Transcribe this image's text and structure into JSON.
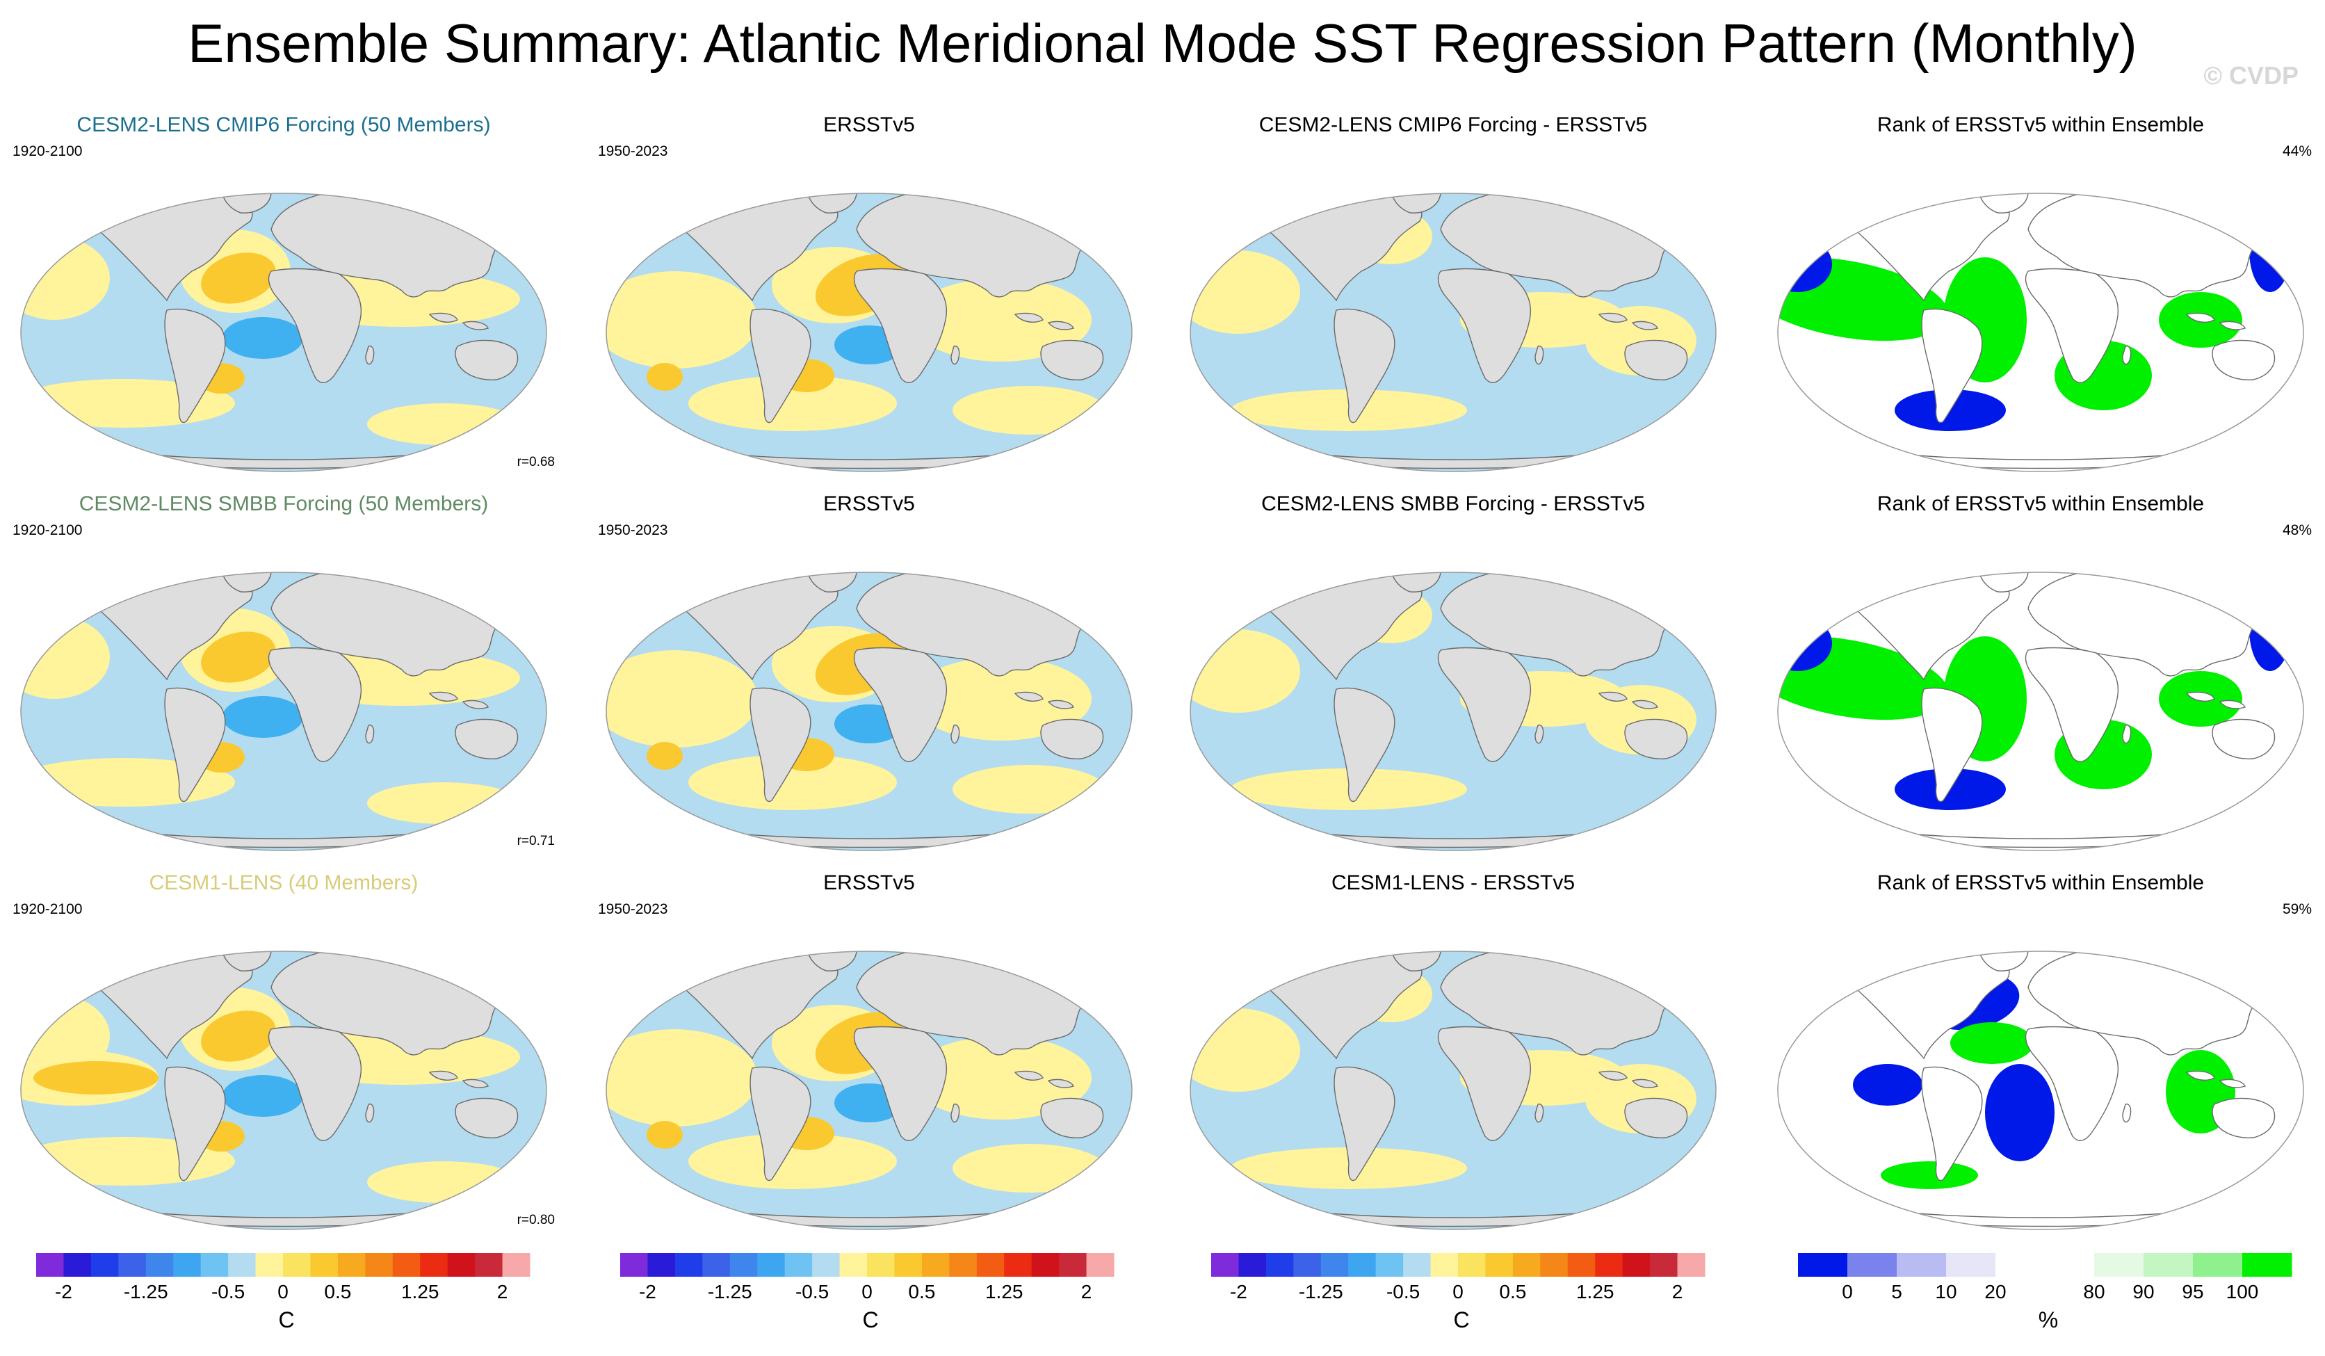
{
  "title": "Ensemble Summary: Atlantic Meridional Mode SST Regression Pattern (Monthly)",
  "watermark": "© CVDP",
  "colors": {
    "land": "#dedede",
    "coast": "#6a6a6a",
    "warm1": "#fff39c",
    "warm2": "#f9c92f",
    "cool1": "#b3dcf0",
    "cool2": "#3fb0f0",
    "rank_low": "#0018e8",
    "rank_mid": "#ffffff",
    "rank_high": "#00f000"
  },
  "rows": [
    {
      "ensemble": {
        "title": "CESM2-LENS CMIP6 Forcing (50 Members)",
        "title_color": "#1a6f8f",
        "period": "1920-2100",
        "corr": "r=0.68"
      },
      "obs": {
        "title": "ERSSTv5",
        "period": "1950-2023"
      },
      "diff": {
        "title": "CESM2-LENS CMIP6 Forcing - ERSSTv5"
      },
      "rank": {
        "title": "Rank of ERSSTv5 within Ensemble",
        "pct": "44%"
      }
    },
    {
      "ensemble": {
        "title": "CESM2-LENS SMBB Forcing (50 Members)",
        "title_color": "#5f8a63",
        "period": "1920-2100",
        "corr": "r=0.71"
      },
      "obs": {
        "title": "ERSSTv5",
        "period": "1950-2023"
      },
      "diff": {
        "title": "CESM2-LENS SMBB Forcing - ERSSTv5"
      },
      "rank": {
        "title": "Rank of ERSSTv5 within Ensemble",
        "pct": "48%"
      }
    },
    {
      "ensemble": {
        "title": "CESM1-LENS (40 Members)",
        "title_color": "#d7cc79",
        "period": "1920-2100",
        "corr": "r=0.80"
      },
      "obs": {
        "title": "ERSSTv5",
        "period": "1950-2023"
      },
      "diff": {
        "title": "CESM1-LENS - ERSSTv5"
      },
      "rank": {
        "title": "Rank of ERSSTv5 within Ensemble",
        "pct": "59%"
      }
    }
  ],
  "chart_data": [
    {
      "type": "heatmap",
      "variable": "SST regression",
      "projection": "robinson",
      "colorbar": {
        "unit": "C",
        "tick_labels": [
          "-2",
          "-1.25",
          "-0.5",
          "0",
          "0.5",
          "1.25",
          "2"
        ],
        "tick_values": [
          -2,
          -1.25,
          -0.5,
          0,
          0.5,
          1.25,
          2
        ],
        "range": [
          -2.25,
          2.25
        ],
        "colors": [
          "#7f2bdc",
          "#2a1bd8",
          "#1f3de8",
          "#3b62e8",
          "#3e86ec",
          "#3ea6f0",
          "#6fc3f3",
          "#b3dcf0",
          "#fff39c",
          "#f9e35f",
          "#f9c92f",
          "#f7a91f",
          "#f48717",
          "#f25d13",
          "#ec2c12",
          "#d0121b",
          "#c82a3a",
          "#f7a8a8"
        ]
      },
      "ensemble_period": "1920-2100",
      "obs_period": "1950-2023",
      "pattern_correlations": [
        0.68,
        0.71,
        0.8
      ]
    },
    {
      "type": "heatmap",
      "variable": "Rank of ERSSTv5 within Ensemble",
      "projection": "robinson",
      "colorbar": {
        "unit": "%",
        "tick_labels": [
          "0",
          "5",
          "10",
          "20",
          "80",
          "90",
          "95",
          "100"
        ],
        "tick_values": [
          0,
          5,
          10,
          20,
          80,
          90,
          95,
          100
        ],
        "colors": [
          "#0018e8",
          "#7a82ee",
          "#b9bcf3",
          "#e6e6f8",
          "#ffffff",
          "#ffffff",
          "#e4fae4",
          "#c4f6c4",
          "#8ef18e",
          "#00f000"
        ]
      },
      "rank_percent": [
        44,
        48,
        59
      ]
    }
  ]
}
